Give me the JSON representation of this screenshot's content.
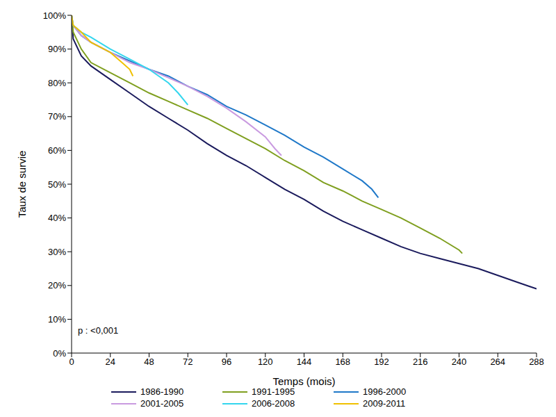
{
  "chart_data": {
    "type": "line",
    "xlabel": "Temps (mois)",
    "ylabel": "Taux de survie",
    "annotation": "p : <0,001",
    "xlim": [
      0,
      288
    ],
    "xticks": [
      0,
      24,
      48,
      72,
      96,
      120,
      144,
      168,
      192,
      216,
      240,
      264,
      288
    ],
    "ylim": [
      0,
      100
    ],
    "yticks": [
      {
        "value": 0,
        "label": "0%"
      },
      {
        "value": 10,
        "label": "10%"
      },
      {
        "value": 20,
        "label": "20%"
      },
      {
        "value": 30,
        "label": "30%"
      },
      {
        "value": 40,
        "label": "40%"
      },
      {
        "value": 50,
        "label": "50%"
      },
      {
        "value": 60,
        "label": "60%"
      },
      {
        "value": 70,
        "label": "70%"
      },
      {
        "value": 80,
        "label": "80%"
      },
      {
        "value": 90,
        "label": "90%"
      },
      {
        "value": 100,
        "label": "100%"
      }
    ],
    "grid": false,
    "legend": "bottom",
    "series": [
      {
        "name": "1986-1990",
        "color": "#1a1a5c",
        "x": [
          0,
          1,
          6,
          12,
          24,
          36,
          48,
          60,
          72,
          84,
          96,
          108,
          120,
          132,
          144,
          156,
          168,
          180,
          192,
          204,
          216,
          228,
          240,
          252,
          264,
          276,
          288
        ],
        "values": [
          100,
          93,
          88,
          85,
          81,
          77,
          73,
          69.5,
          66,
          62,
          58.5,
          55.5,
          52,
          48.5,
          45.5,
          42,
          39,
          36.5,
          34,
          31.5,
          29.5,
          28,
          26.5,
          25,
          23,
          21,
          19
        ]
      },
      {
        "name": "1991-1995",
        "color": "#7f9f1f",
        "x": [
          0,
          1,
          6,
          12,
          24,
          36,
          48,
          60,
          72,
          84,
          96,
          108,
          120,
          132,
          144,
          156,
          168,
          180,
          192,
          204,
          216,
          228,
          240,
          242
        ],
        "values": [
          100,
          95,
          90,
          86,
          83,
          80,
          77,
          74.5,
          72,
          69.5,
          66.5,
          63.5,
          60.5,
          57,
          54,
          50.5,
          48,
          45,
          42.5,
          40,
          37,
          34,
          30.5,
          29.5
        ]
      },
      {
        "name": "1996-2000",
        "color": "#1f78c8",
        "x": [
          0,
          1,
          6,
          12,
          24,
          36,
          48,
          60,
          72,
          84,
          96,
          108,
          120,
          132,
          144,
          156,
          168,
          180,
          186,
          190
        ],
        "values": [
          100,
          97,
          94,
          92,
          89,
          86.5,
          84,
          82,
          79,
          76.5,
          73,
          70.5,
          67.5,
          64.5,
          61,
          58,
          54.5,
          51,
          48.5,
          46
        ]
      },
      {
        "name": "2001-2005",
        "color": "#c99ae0",
        "x": [
          0,
          1,
          6,
          12,
          24,
          36,
          48,
          60,
          72,
          84,
          96,
          108,
          120,
          126,
          130
        ],
        "values": [
          100,
          97,
          94,
          92,
          89,
          86,
          84,
          81.5,
          79,
          76,
          72.5,
          68.5,
          64,
          60.5,
          58.5
        ]
      },
      {
        "name": "2006-2008",
        "color": "#33d6ee",
        "x": [
          0,
          1,
          6,
          12,
          24,
          36,
          48,
          60,
          66,
          72
        ],
        "values": [
          100,
          97,
          95,
          93.5,
          90,
          87,
          84,
          80,
          77,
          73.5
        ]
      },
      {
        "name": "2009-2011",
        "color": "#f0c000",
        "x": [
          0,
          1,
          6,
          12,
          24,
          30,
          36,
          38
        ],
        "values": [
          100,
          97,
          95,
          92,
          89,
          86.5,
          84,
          82
        ]
      }
    ]
  }
}
